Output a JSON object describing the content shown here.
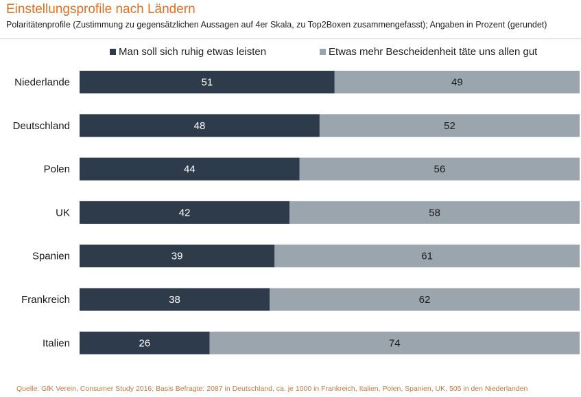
{
  "title": "Einstellungsprofile  nach Ländern",
  "subtitle": "Polaritätenprofile  (Zustimmung zu gegensätzlichen Aussagen auf 4er Skala, zu Top2Boxen zusammengefasst);  Angaben in Prozent (gerundet)",
  "footnote": "Quelle:  GfK Verein, Consumer Study 2016;  Basis Befragte: 2087 in Deutschland, ca. je 1000 in Frankreich, Italien,  Polen,  Spanien, UK, 505 in den Niederlanden",
  "colors": {
    "series1": "#2d3b4a",
    "series2": "#9ba5ae",
    "title": "#e0701e",
    "footnote": "#c8783a"
  },
  "chart_data": {
    "type": "bar",
    "orientation": "horizontal",
    "stacked": true,
    "categories": [
      "Niederlande",
      "Deutschland",
      "Polen",
      "UK",
      "Spanien",
      "Frankreich",
      "Italien"
    ],
    "series": [
      {
        "name": "Man soll sich ruhig etwas leisten",
        "values": [
          51,
          48,
          44,
          42,
          39,
          38,
          26
        ]
      },
      {
        "name": "Etwas mehr Bescheidenheit täte uns allen gut",
        "values": [
          49,
          52,
          56,
          58,
          61,
          62,
          74
        ]
      }
    ],
    "xlim": [
      0,
      100
    ],
    "legend": "top",
    "grid": false
  }
}
